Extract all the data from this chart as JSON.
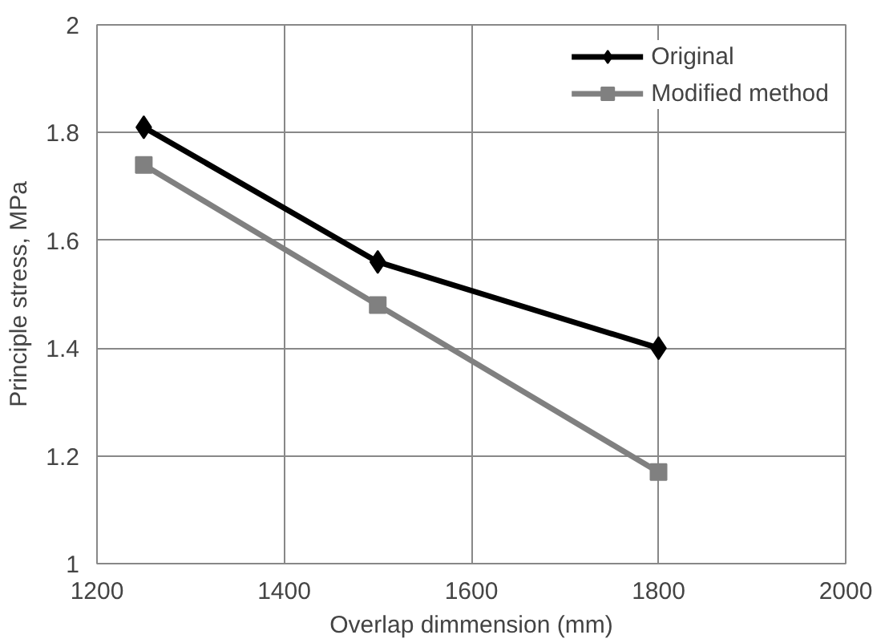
{
  "chart_data": {
    "type": "line",
    "xlabel": "Overlap dimmension (mm)",
    "ylabel": "Principle stress, MPa",
    "x": [
      1250,
      1500,
      1800
    ],
    "series": [
      {
        "name": "Original",
        "color": "#000000",
        "marker": "diamond",
        "values": [
          1.81,
          1.56,
          1.4
        ]
      },
      {
        "name": "Modified method",
        "color": "#808080",
        "marker": "square",
        "values": [
          1.74,
          1.48,
          1.17
        ]
      }
    ],
    "xlim": [
      1200,
      2000
    ],
    "xticks": [
      1200,
      1400,
      1600,
      1800,
      2000
    ],
    "ylim": [
      1,
      2
    ],
    "yticks": [
      1,
      1.2,
      1.4,
      1.6,
      1.8,
      2
    ],
    "grid": true,
    "legend": "top right",
    "line_style": "solid"
  }
}
